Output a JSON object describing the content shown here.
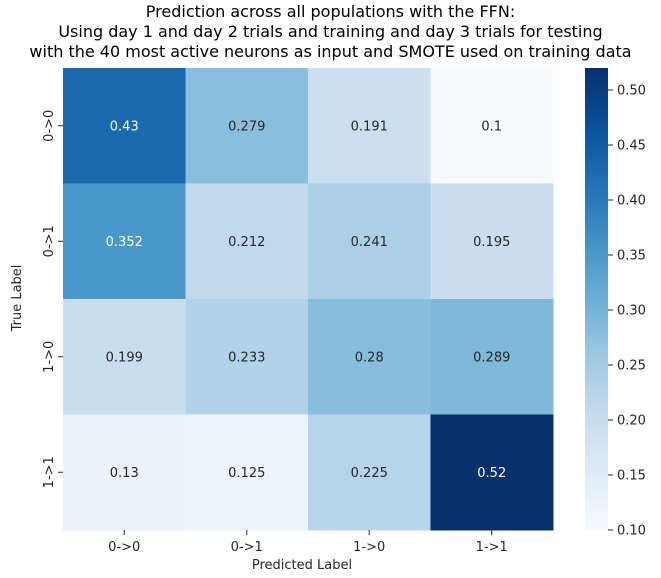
{
  "chart_data": {
    "type": "heatmap",
    "title_lines": [
      "Prediction across all populations with the FFN:",
      "Using day 1 and day 2 trials and training and day 3 trials for testing",
      "with the 40 most active neurons as input and SMOTE used on training data"
    ],
    "xlabel": "Predicted Label",
    "ylabel": "True Label",
    "x_categories": [
      "0->0",
      "0->1",
      "1->0",
      "1->1"
    ],
    "y_categories": [
      "0->0",
      "0->1",
      "1->0",
      "1->1"
    ],
    "values": [
      [
        0.43,
        0.279,
        0.191,
        0.1
      ],
      [
        0.352,
        0.212,
        0.241,
        0.195
      ],
      [
        0.199,
        0.233,
        0.28,
        0.289
      ],
      [
        0.13,
        0.125,
        0.225,
        0.52
      ]
    ],
    "value_labels": [
      [
        "0.43",
        "0.279",
        "0.191",
        "0.1"
      ],
      [
        "0.352",
        "0.212",
        "0.241",
        "0.195"
      ],
      [
        "0.199",
        "0.233",
        "0.28",
        "0.289"
      ],
      [
        "0.13",
        "0.125",
        "0.225",
        "0.52"
      ]
    ],
    "colormap": "Blues",
    "colorbar": {
      "vmin": 0.1,
      "vmax": 0.52,
      "ticks": [
        "0.10",
        "0.15",
        "0.20",
        "0.25",
        "0.30",
        "0.35",
        "0.40",
        "0.45",
        "0.50"
      ]
    }
  }
}
